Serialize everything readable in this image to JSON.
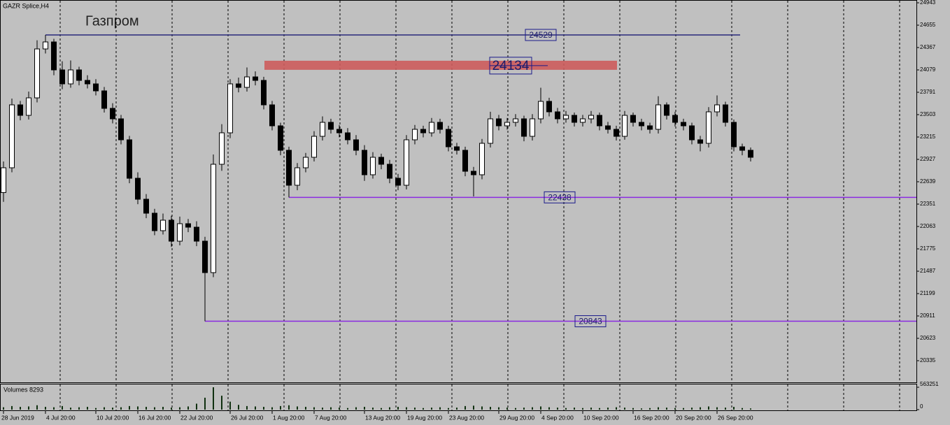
{
  "chart_data": {
    "type": "candlestick",
    "symbol": "GAZR Splice,H4",
    "title": "Газпром",
    "categories": [
      "28 Jun 2019",
      null,
      null,
      null,
      null,
      "4 Jul 20:00",
      null,
      null,
      null,
      null,
      null,
      "10 Jul 20:00",
      null,
      null,
      null,
      null,
      "16 Jul 20:00",
      null,
      null,
      null,
      null,
      "22 Jul 20:00",
      null,
      null,
      null,
      null,
      null,
      "26 Jul 20:00",
      null,
      null,
      null,
      null,
      "1 Aug 20:00",
      null,
      null,
      null,
      null,
      "7 Aug 20:00",
      null,
      null,
      null,
      null,
      null,
      "13 Aug 20:00",
      null,
      null,
      null,
      null,
      "19 Aug 20:00",
      null,
      null,
      null,
      null,
      "23 Aug 20:00",
      null,
      null,
      null,
      null,
      null,
      "29 Aug 20:00",
      null,
      null,
      null,
      null,
      "4 Sep 20:00",
      null,
      null,
      null,
      null,
      "10 Sep 20:00",
      null,
      null,
      null,
      null,
      null,
      "16 Sep 20:00",
      null,
      null,
      null,
      null,
      "20 Sep 20:00",
      null,
      null,
      null,
      null,
      "26 Sep 20:00",
      null,
      null,
      null,
      null
    ],
    "open": [
      22500,
      22819,
      23629,
      23494,
      23719,
      24349,
      24439,
      24079,
      23899,
      24079,
      23944,
      23899,
      23809,
      23584,
      23449,
      23179,
      22684,
      22414,
      22234,
      22009,
      22144,
      21874,
      22099,
      22054,
      21874,
      21469,
      22864,
      23269,
      23899,
      23854,
      23989,
      23944,
      23629,
      23359,
      23044,
      22594,
      22819,
      22954,
      23224,
      23404,
      23314,
      23269,
      23179,
      23044,
      22729,
      22954,
      22864,
      22684,
      22594,
      23179,
      23314,
      23269,
      23404,
      23314,
      23089,
      23044,
      22774,
      22729,
      23134,
      23449,
      23359,
      23404,
      23449,
      23224,
      23449,
      23674,
      23539,
      23449,
      23494,
      23404,
      23449,
      23494,
      23359,
      23314,
      23224,
      23494,
      23404,
      23359,
      23314,
      23629,
      23494,
      23404,
      23359,
      23179,
      23134,
      23539,
      23629,
      23404,
      23089,
      23044
    ],
    "high": [
      22900,
      23710,
      23680,
      23800,
      24460,
      24529,
      24480,
      24190,
      24200,
      24120,
      24010,
      23960,
      23860,
      23650,
      23500,
      23230,
      22760,
      22480,
      22290,
      22230,
      22200,
      22190,
      22160,
      22130,
      21930,
      22990,
      23380,
      23960,
      23980,
      24110,
      24060,
      23990,
      23680,
      23400,
      23090,
      22880,
      23010,
      23290,
      23480,
      23450,
      23370,
      23330,
      23240,
      23110,
      23020,
      23000,
      22920,
      22740,
      23240,
      23370,
      23360,
      23460,
      23450,
      23360,
      23140,
      23090,
      22830,
      23190,
      23540,
      23500,
      23460,
      23510,
      23490,
      23510,
      23850,
      23720,
      23590,
      23550,
      23530,
      23500,
      23550,
      23530,
      23410,
      23360,
      23550,
      23530,
      23450,
      23400,
      23740,
      23660,
      23540,
      23450,
      23400,
      23230,
      23600,
      23750,
      23670,
      23440,
      23130,
      23080
    ],
    "low": [
      22380,
      22760,
      23430,
      23440,
      23660,
      24290,
      24010,
      23830,
      23850,
      23880,
      23840,
      23750,
      23530,
      23390,
      23120,
      22620,
      22350,
      22170,
      21950,
      21960,
      21800,
      21820,
      21990,
      21810,
      20843,
      21410,
      22780,
      23200,
      23790,
      23800,
      23880,
      23570,
      23300,
      22980,
      22438,
      22530,
      22760,
      22900,
      23170,
      23260,
      23210,
      23120,
      22980,
      22650,
      22680,
      22800,
      22620,
      22530,
      22540,
      23120,
      23210,
      23220,
      23260,
      23030,
      22990,
      22710,
      22450,
      22670,
      23080,
      23300,
      23310,
      23350,
      23160,
      23170,
      23390,
      23480,
      23390,
      23400,
      23350,
      23350,
      23390,
      23300,
      23260,
      23170,
      23180,
      23350,
      23300,
      23260,
      23260,
      23440,
      23350,
      23300,
      23120,
      23030,
      23080,
      23480,
      23350,
      23030,
      22980,
      22900
    ],
    "close": [
      22819,
      23629,
      23494,
      23719,
      24349,
      24439,
      24079,
      23899,
      24079,
      23944,
      23899,
      23809,
      23584,
      23449,
      23179,
      22684,
      22414,
      22234,
      22009,
      22144,
      21874,
      22099,
      22054,
      21874,
      21469,
      22864,
      23269,
      23899,
      23854,
      23989,
      23944,
      23629,
      23359,
      23044,
      22594,
      22819,
      22954,
      23224,
      23404,
      23314,
      23269,
      23179,
      23044,
      22729,
      22954,
      22864,
      22684,
      22594,
      23179,
      23314,
      23269,
      23404,
      23314,
      23089,
      23044,
      22774,
      22729,
      23134,
      23449,
      23359,
      23404,
      23449,
      23224,
      23449,
      23674,
      23539,
      23449,
      23494,
      23404,
      23449,
      23494,
      23359,
      23314,
      23224,
      23494,
      23404,
      23359,
      23314,
      23629,
      23494,
      23404,
      23359,
      23179,
      23134,
      23539,
      23629,
      23404,
      23089,
      23044,
      22954
    ],
    "ylim": [
      20056,
      24979
    ],
    "yticks": [
      24943,
      24655,
      24367,
      24079,
      23791,
      23503,
      23215,
      22927,
      22639,
      22351,
      22063,
      21775,
      21487,
      21199,
      20911,
      20623,
      20335
    ],
    "levels": [
      {
        "value": 24529,
        "color": "#28287a"
      },
      {
        "value": 22438,
        "color": "#8a2be2"
      },
      {
        "value": 20843,
        "color": "#8a2be2"
      }
    ],
    "zone": {
      "value": 24134,
      "color": "#cd5c5c"
    },
    "volume": {
      "label": "Volumes 8293",
      "color": "#103010",
      "values": [
        60000,
        90000,
        70000,
        80000,
        110000,
        70000,
        60000,
        90000,
        50000,
        60000,
        70000,
        40000,
        60000,
        50000,
        60000,
        90000,
        80000,
        70000,
        60000,
        70000,
        50000,
        60000,
        80000,
        150000,
        300000,
        563251,
        350000,
        200000,
        120000,
        90000,
        80000,
        70000,
        60000,
        90000,
        110000,
        80000,
        70000,
        60000,
        50000,
        60000,
        50000,
        40000,
        60000,
        70000,
        50000,
        40000,
        60000,
        70000,
        60000,
        50000,
        40000,
        50000,
        60000,
        40000,
        50000,
        90000,
        100000,
        80000,
        70000,
        60000,
        50000,
        40000,
        50000,
        60000,
        80000,
        60000,
        50000,
        40000,
        50000,
        40000,
        50000,
        40000,
        50000,
        60000,
        50000,
        40000,
        30000,
        40000,
        60000,
        50000,
        40000,
        40000,
        50000,
        60000,
        80000,
        60000,
        50000,
        70000,
        40000,
        30000
      ],
      "ylim": [
        0,
        563251
      ],
      "yticks": [
        0,
        563251
      ]
    }
  }
}
